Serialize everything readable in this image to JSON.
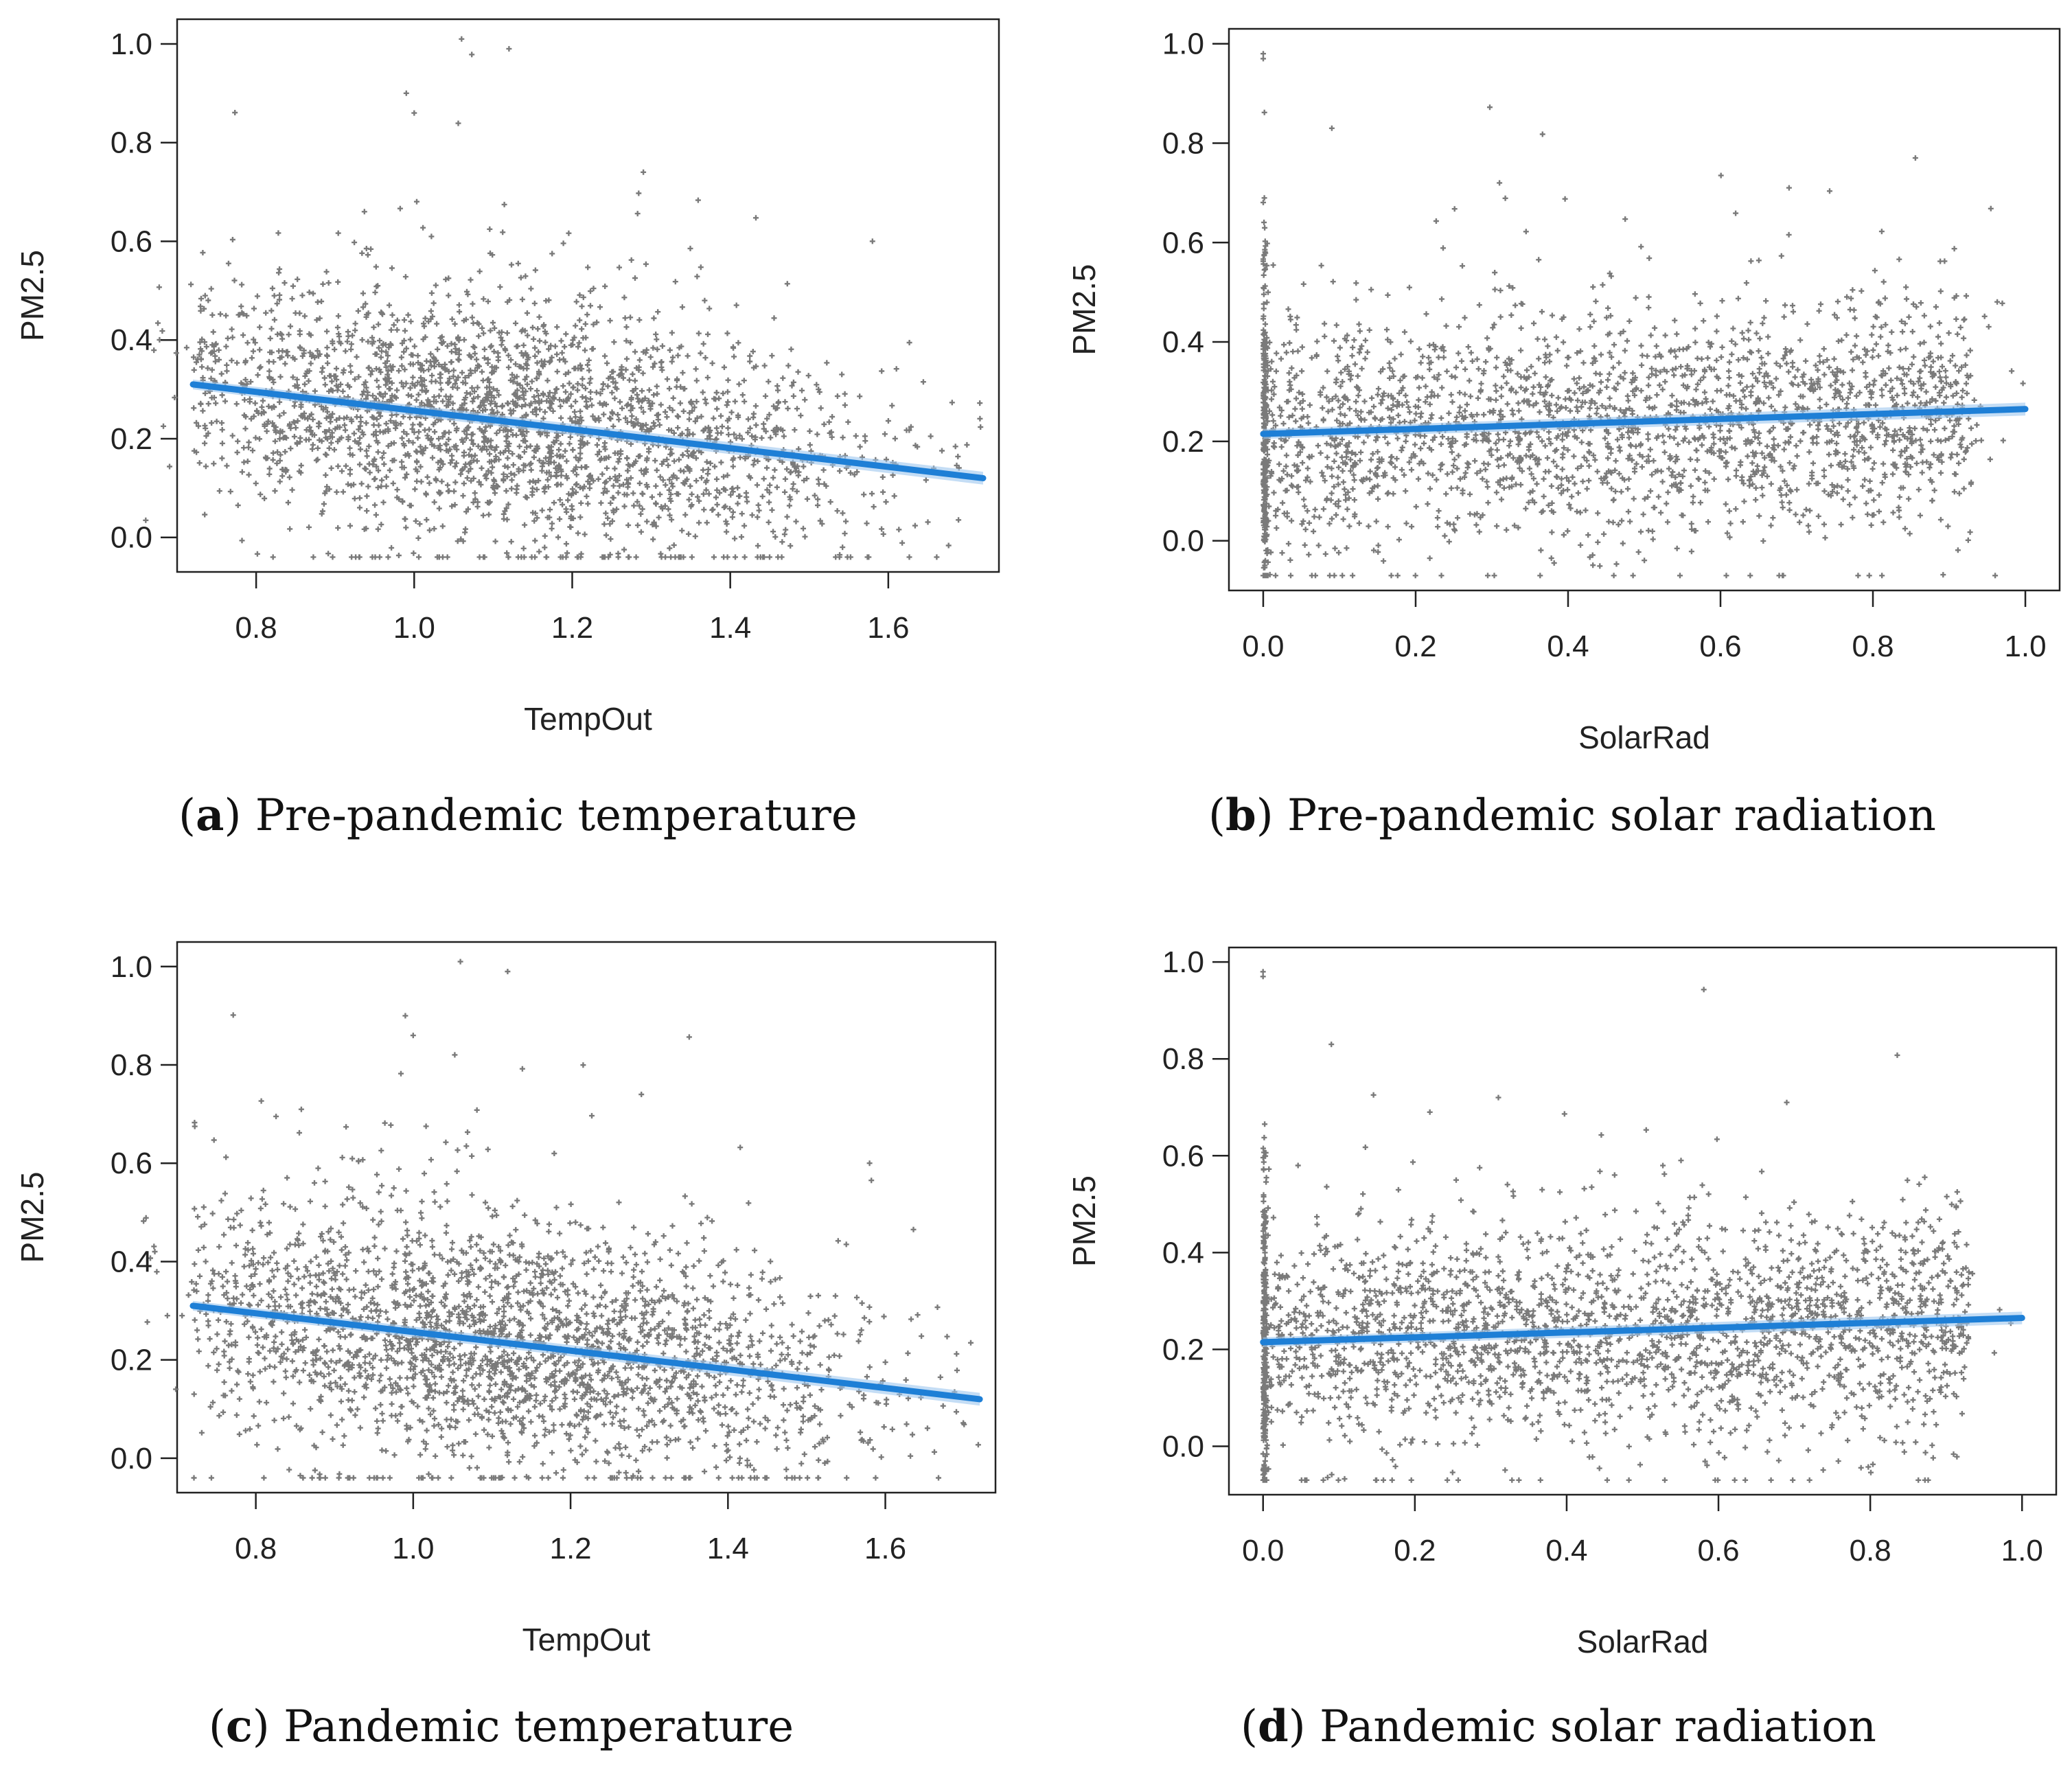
{
  "chart_data": [
    {
      "id": "a",
      "type": "scatter",
      "caption_letter": "a",
      "caption_text": "Pre-pandemic temperature",
      "xlabel": "TempOut",
      "ylabel": "PM2.5",
      "xlim": [
        0.7,
        1.74
      ],
      "ylim": [
        -0.07,
        1.05
      ],
      "xticks": [
        "0.8",
        "1.0",
        "1.2",
        "1.4",
        "1.6"
      ],
      "yticks": [
        "0.0",
        "0.2",
        "0.4",
        "0.6",
        "0.8",
        "1.0"
      ],
      "scatter_color": "#7a7a7a",
      "trend_color": "#1e7fd6",
      "trend_line": {
        "x": [
          0.72,
          1.72
        ],
        "y": [
          0.31,
          0.12
        ]
      },
      "highlight_points": [
        {
          "x": 1.06,
          "y": 1.01
        },
        {
          "x": 1.12,
          "y": 0.99
        },
        {
          "x": 0.99,
          "y": 0.9
        },
        {
          "x": 1.0,
          "y": 0.86
        },
        {
          "x": 1.29,
          "y": 0.74
        },
        {
          "x": 1.58,
          "y": 0.6
        }
      ],
      "dense_cluster": {
        "x_center": 1.1,
        "x_spread": 0.24,
        "y_center": 0.22,
        "y_spread": 0.12,
        "count": 2600
      }
    },
    {
      "id": "b",
      "type": "scatter",
      "caption_letter": "b",
      "caption_text": "Pre-pandemic solar radiation",
      "xlabel": "SolarRad",
      "ylabel": "PM2.5",
      "xlim": [
        -0.045,
        1.045
      ],
      "ylim": [
        -0.1,
        1.03
      ],
      "xticks": [
        "0.0",
        "0.2",
        "0.4",
        "0.6",
        "0.8",
        "1.0"
      ],
      "yticks": [
        "0.0",
        "0.2",
        "0.4",
        "0.6",
        "0.8",
        "1.0"
      ],
      "scatter_color": "#7a7a7a",
      "trend_color": "#1e7fd6",
      "trend_line": {
        "x": [
          0.0,
          1.0
        ],
        "y": [
          0.215,
          0.265
        ]
      },
      "highlight_points": [
        {
          "x": 0.0,
          "y": 0.98
        },
        {
          "x": 0.0,
          "y": 0.97
        },
        {
          "x": 0.09,
          "y": 0.83
        },
        {
          "x": 0.69,
          "y": 0.71
        },
        {
          "x": 0.31,
          "y": 0.72
        }
      ],
      "dense_cluster": {
        "x_center": 0.5,
        "x_spread": 0.3,
        "y_center": 0.24,
        "y_spread": 0.11,
        "count": 2600
      }
    },
    {
      "id": "c",
      "type": "scatter",
      "caption_letter": "c",
      "caption_text": "Pandemic temperature",
      "xlabel": "TempOut",
      "ylabel": "PM2.5",
      "xlim": [
        0.7,
        1.74
      ],
      "ylim": [
        -0.07,
        1.05
      ],
      "xticks": [
        "0.8",
        "1.0",
        "1.2",
        "1.4",
        "1.6"
      ],
      "yticks": [
        "0.0",
        "0.2",
        "0.4",
        "0.6",
        "0.8",
        "1.0"
      ],
      "scatter_color": "#7a7a7a",
      "trend_color": "#1e7fd6",
      "trend_line": {
        "x": [
          0.72,
          1.72
        ],
        "y": [
          0.31,
          0.12
        ]
      },
      "highlight_points": [
        {
          "x": 1.06,
          "y": 1.01
        },
        {
          "x": 1.12,
          "y": 0.99
        },
        {
          "x": 0.99,
          "y": 0.9
        },
        {
          "x": 1.0,
          "y": 0.86
        },
        {
          "x": 1.29,
          "y": 0.74
        },
        {
          "x": 1.58,
          "y": 0.6
        }
      ],
      "dense_cluster": {
        "x_center": 1.1,
        "x_spread": 0.24,
        "y_center": 0.22,
        "y_spread": 0.12,
        "count": 2600
      }
    },
    {
      "id": "d",
      "type": "scatter",
      "caption_letter": "d",
      "caption_text": "Pandemic solar radiation",
      "xlabel": "SolarRad",
      "ylabel": "PM2.5",
      "xlim": [
        -0.045,
        1.045
      ],
      "ylim": [
        -0.1,
        1.03
      ],
      "xticks": [
        "0.0",
        "0.2",
        "0.4",
        "0.6",
        "0.8",
        "1.0"
      ],
      "yticks": [
        "0.0",
        "0.2",
        "0.4",
        "0.6",
        "0.8",
        "1.0"
      ],
      "scatter_color": "#7a7a7a",
      "trend_color": "#1e7fd6",
      "trend_line": {
        "x": [
          0.0,
          1.0
        ],
        "y": [
          0.215,
          0.265
        ]
      },
      "highlight_points": [
        {
          "x": 0.0,
          "y": 0.98
        },
        {
          "x": 0.0,
          "y": 0.97
        },
        {
          "x": 0.09,
          "y": 0.83
        },
        {
          "x": 0.69,
          "y": 0.71
        },
        {
          "x": 0.31,
          "y": 0.72
        }
      ],
      "dense_cluster": {
        "x_center": 0.5,
        "x_spread": 0.3,
        "y_center": 0.24,
        "y_spread": 0.11,
        "count": 2600
      }
    }
  ]
}
